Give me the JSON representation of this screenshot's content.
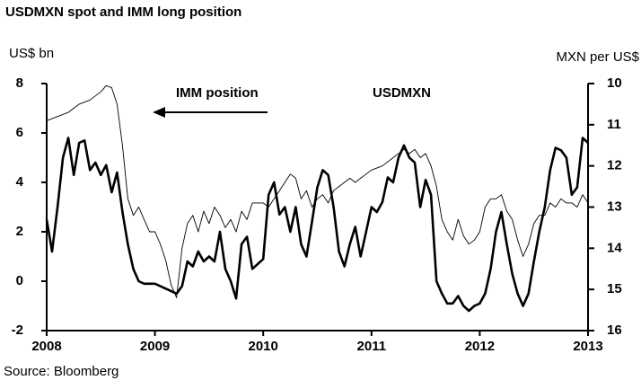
{
  "chart_data": {
    "type": "line",
    "title": "USDMXN spot and IMM long position",
    "ylabel": "US$ bn",
    "y2label": "MXN per US$",
    "source": "Source: Bloomberg",
    "annotations": [
      "IMM position",
      "USDMXN"
    ],
    "xlim": [
      2008,
      2013
    ],
    "xticks": [
      2008,
      2009,
      2010,
      2011,
      2012,
      2013
    ],
    "ylim": [
      -2,
      8
    ],
    "yticks": [
      -2,
      0,
      2,
      4,
      6,
      8
    ],
    "y2lim": [
      16,
      10
    ],
    "y2ticks": [
      10,
      11,
      12,
      13,
      14,
      15,
      16
    ],
    "series": [
      {
        "name": "IMM position",
        "color": "#000000",
        "x": [
          2008.0,
          2008.05,
          2008.1,
          2008.15,
          2008.2,
          2008.25,
          2008.3,
          2008.35,
          2008.4,
          2008.45,
          2008.5,
          2008.55,
          2008.6,
          2008.65,
          2008.7,
          2008.75,
          2008.8,
          2008.85,
          2008.9,
          2009.0,
          2009.1,
          2009.2,
          2009.25,
          2009.3,
          2009.35,
          2009.4,
          2009.45,
          2009.5,
          2009.55,
          2009.6,
          2009.65,
          2009.7,
          2009.75,
          2009.8,
          2009.85,
          2009.9,
          2010.0,
          2010.05,
          2010.1,
          2010.15,
          2010.2,
          2010.25,
          2010.3,
          2010.35,
          2010.4,
          2010.45,
          2010.5,
          2010.55,
          2010.6,
          2010.65,
          2010.7,
          2010.75,
          2010.8,
          2010.85,
          2010.9,
          2010.95,
          2011.0,
          2011.05,
          2011.1,
          2011.15,
          2011.2,
          2011.25,
          2011.3,
          2011.35,
          2011.4,
          2011.45,
          2011.5,
          2011.55,
          2011.6,
          2011.65,
          2011.7,
          2011.75,
          2011.8,
          2011.85,
          2011.9,
          2011.95,
          2012.0,
          2012.05,
          2012.1,
          2012.15,
          2012.2,
          2012.25,
          2012.3,
          2012.35,
          2012.4,
          2012.45,
          2012.5,
          2012.55,
          2012.6,
          2012.65,
          2012.7,
          2012.75,
          2012.8,
          2012.85,
          2012.9,
          2012.95,
          2013.0
        ],
        "values": [
          2.5,
          1.2,
          3.0,
          5.0,
          5.8,
          4.3,
          5.6,
          5.7,
          4.5,
          4.8,
          4.3,
          4.7,
          3.6,
          4.4,
          2.8,
          1.5,
          0.5,
          0.0,
          -0.1,
          -0.1,
          -0.3,
          -0.5,
          -0.2,
          0.8,
          0.6,
          1.2,
          0.8,
          1.0,
          0.8,
          2.0,
          0.5,
          0.0,
          -0.7,
          1.5,
          1.8,
          0.5,
          0.9,
          3.5,
          4.0,
          2.7,
          3.0,
          2.0,
          3.0,
          1.5,
          1.0,
          2.4,
          3.8,
          4.5,
          4.3,
          3.0,
          1.2,
          0.6,
          1.5,
          2.2,
          1.0,
          2.0,
          3.0,
          2.8,
          3.2,
          4.2,
          4.0,
          5.0,
          5.5,
          5.0,
          4.8,
          3.0,
          4.1,
          3.5,
          0.0,
          -0.5,
          -0.9,
          -0.9,
          -0.6,
          -1.0,
          -1.2,
          -1.0,
          -0.9,
          -0.5,
          0.5,
          2.0,
          2.8,
          1.5,
          0.3,
          -0.5,
          -1.0,
          -0.5,
          0.8,
          2.0,
          3.0,
          4.5,
          5.4,
          5.3,
          5.0,
          3.5,
          3.8,
          5.8,
          5.6
        ]
      },
      {
        "name": "USDMXN",
        "color": "#000000",
        "axis": "y2",
        "x": [
          2008.0,
          2008.1,
          2008.2,
          2008.3,
          2008.4,
          2008.5,
          2008.55,
          2008.6,
          2008.65,
          2008.7,
          2008.75,
          2008.8,
          2008.85,
          2008.9,
          2008.95,
          2009.0,
          2009.05,
          2009.1,
          2009.15,
          2009.2,
          2009.25,
          2009.3,
          2009.35,
          2009.4,
          2009.45,
          2009.5,
          2009.55,
          2009.6,
          2009.65,
          2009.7,
          2009.75,
          2009.8,
          2009.85,
          2009.9,
          2010.0,
          2010.05,
          2010.1,
          2010.15,
          2010.2,
          2010.25,
          2010.3,
          2010.35,
          2010.4,
          2010.45,
          2010.5,
          2010.55,
          2010.6,
          2010.65,
          2010.7,
          2010.75,
          2010.8,
          2010.85,
          2010.9,
          2010.95,
          2011.0,
          2011.1,
          2011.2,
          2011.3,
          2011.35,
          2011.4,
          2011.45,
          2011.5,
          2011.55,
          2011.6,
          2011.65,
          2011.7,
          2011.75,
          2011.8,
          2011.85,
          2011.9,
          2011.95,
          2012.0,
          2012.05,
          2012.1,
          2012.15,
          2012.2,
          2012.25,
          2012.3,
          2012.35,
          2012.4,
          2012.45,
          2012.5,
          2012.55,
          2012.6,
          2012.65,
          2012.7,
          2012.75,
          2012.8,
          2012.85,
          2012.9,
          2012.95,
          2013.0
        ],
        "values": [
          10.9,
          10.8,
          10.7,
          10.5,
          10.4,
          10.2,
          10.05,
          10.1,
          10.5,
          11.5,
          12.8,
          13.2,
          13.0,
          13.3,
          13.6,
          13.6,
          13.9,
          14.3,
          14.9,
          15.2,
          14.0,
          13.4,
          13.2,
          13.6,
          13.1,
          13.4,
          13.0,
          13.2,
          13.5,
          13.3,
          13.6,
          13.1,
          13.3,
          12.9,
          12.9,
          13.0,
          12.8,
          12.6,
          12.4,
          12.2,
          12.3,
          12.8,
          12.6,
          13.0,
          12.8,
          12.7,
          12.9,
          12.6,
          12.5,
          12.4,
          12.3,
          12.4,
          12.3,
          12.2,
          12.1,
          12.0,
          11.8,
          11.6,
          11.7,
          11.6,
          11.8,
          11.7,
          12.0,
          12.5,
          13.3,
          13.6,
          13.8,
          13.3,
          13.7,
          13.9,
          13.8,
          13.6,
          13.0,
          12.8,
          12.8,
          12.7,
          13.1,
          13.3,
          13.8,
          14.2,
          13.9,
          13.4,
          13.2,
          13.2,
          12.9,
          13.0,
          12.8,
          12.9,
          12.9,
          13.0,
          12.7,
          12.9
        ]
      }
    ]
  }
}
